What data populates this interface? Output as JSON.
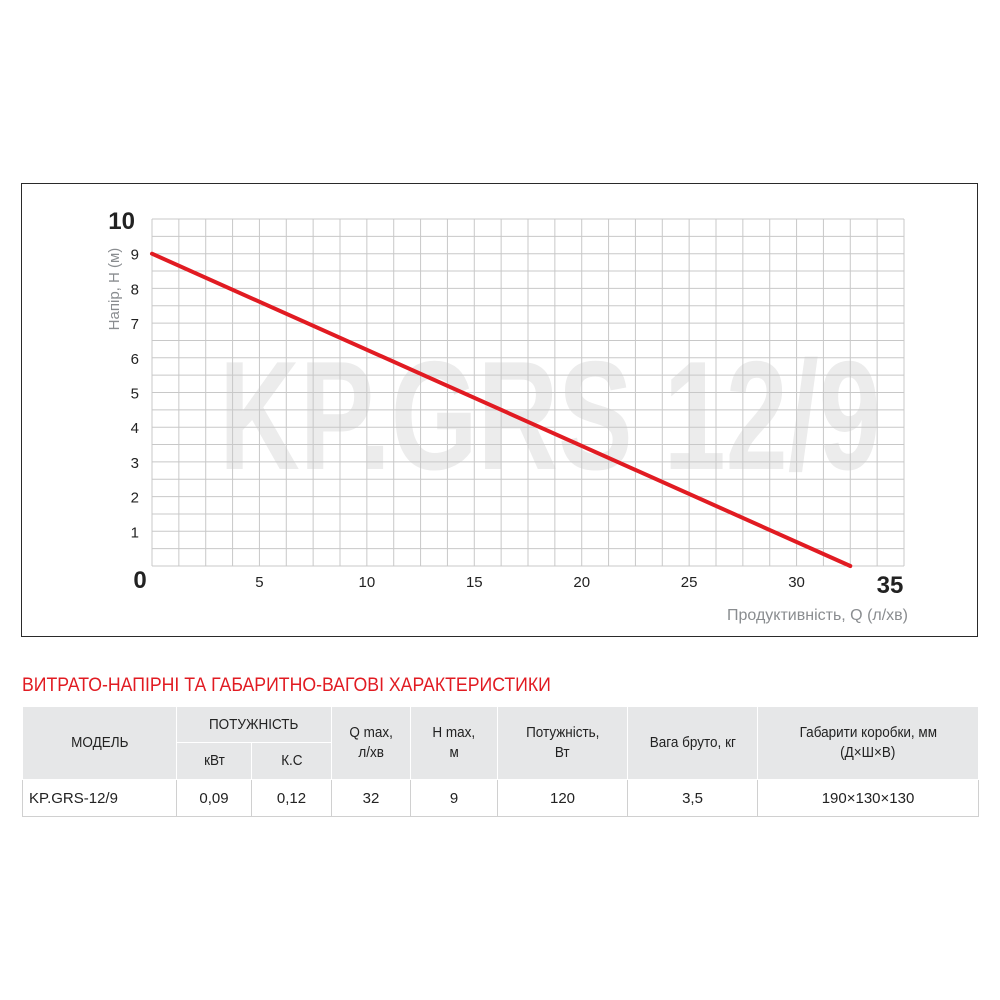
{
  "chart_data": {
    "type": "line",
    "watermark": "KP.GRS 12/9",
    "ylabel": "Напір, H (м)",
    "xlabel": "Продуктивність, Q (л/хв)",
    "xlim": [
      0,
      35
    ],
    "ylim": [
      0,
      10
    ],
    "x_ticks": [
      "0",
      "5",
      "10",
      "15",
      "20",
      "25",
      "30",
      "35"
    ],
    "y_ticks": [
      "1",
      "2",
      "3",
      "4",
      "5",
      "6",
      "7",
      "8",
      "9",
      "10"
    ],
    "grid": true,
    "series": [
      {
        "x": [
          0,
          32.5
        ],
        "y": [
          9,
          0
        ],
        "color": "#e11b22"
      }
    ]
  },
  "section_title": "ВИТРАТО-НАПІРНІ ТА ГАБАРИТНО-ВАГОВІ ХАРАКТЕРИСТИКИ",
  "table": {
    "headers": {
      "model": "МОДЕЛЬ",
      "power_group": "ПОТУЖНІСТЬ",
      "kw": "кВт",
      "hp": "К.С",
      "qmax_line1": "Q max,",
      "qmax_line2": "л/хв",
      "hmax_line1": "H max,",
      "hmax_line2": "м",
      "power_w_line1": "Потужність,",
      "power_w_line2": "Вт",
      "weight": "Вага бруто, кг",
      "dims_line1": "Габарити коробки, мм",
      "dims_line2": "(Д×Ш×В)"
    },
    "rows": [
      {
        "model": "KP.GRS-12/9",
        "kw": "0,09",
        "hp": "0,12",
        "qmax": "32",
        "hmax": "9",
        "power_w": "120",
        "weight": "3,5",
        "dims": "190×130×130"
      }
    ]
  },
  "colors": {
    "accent": "#e11b22",
    "header_bg": "#e6e7e8",
    "grid": "#c8c8c8"
  }
}
